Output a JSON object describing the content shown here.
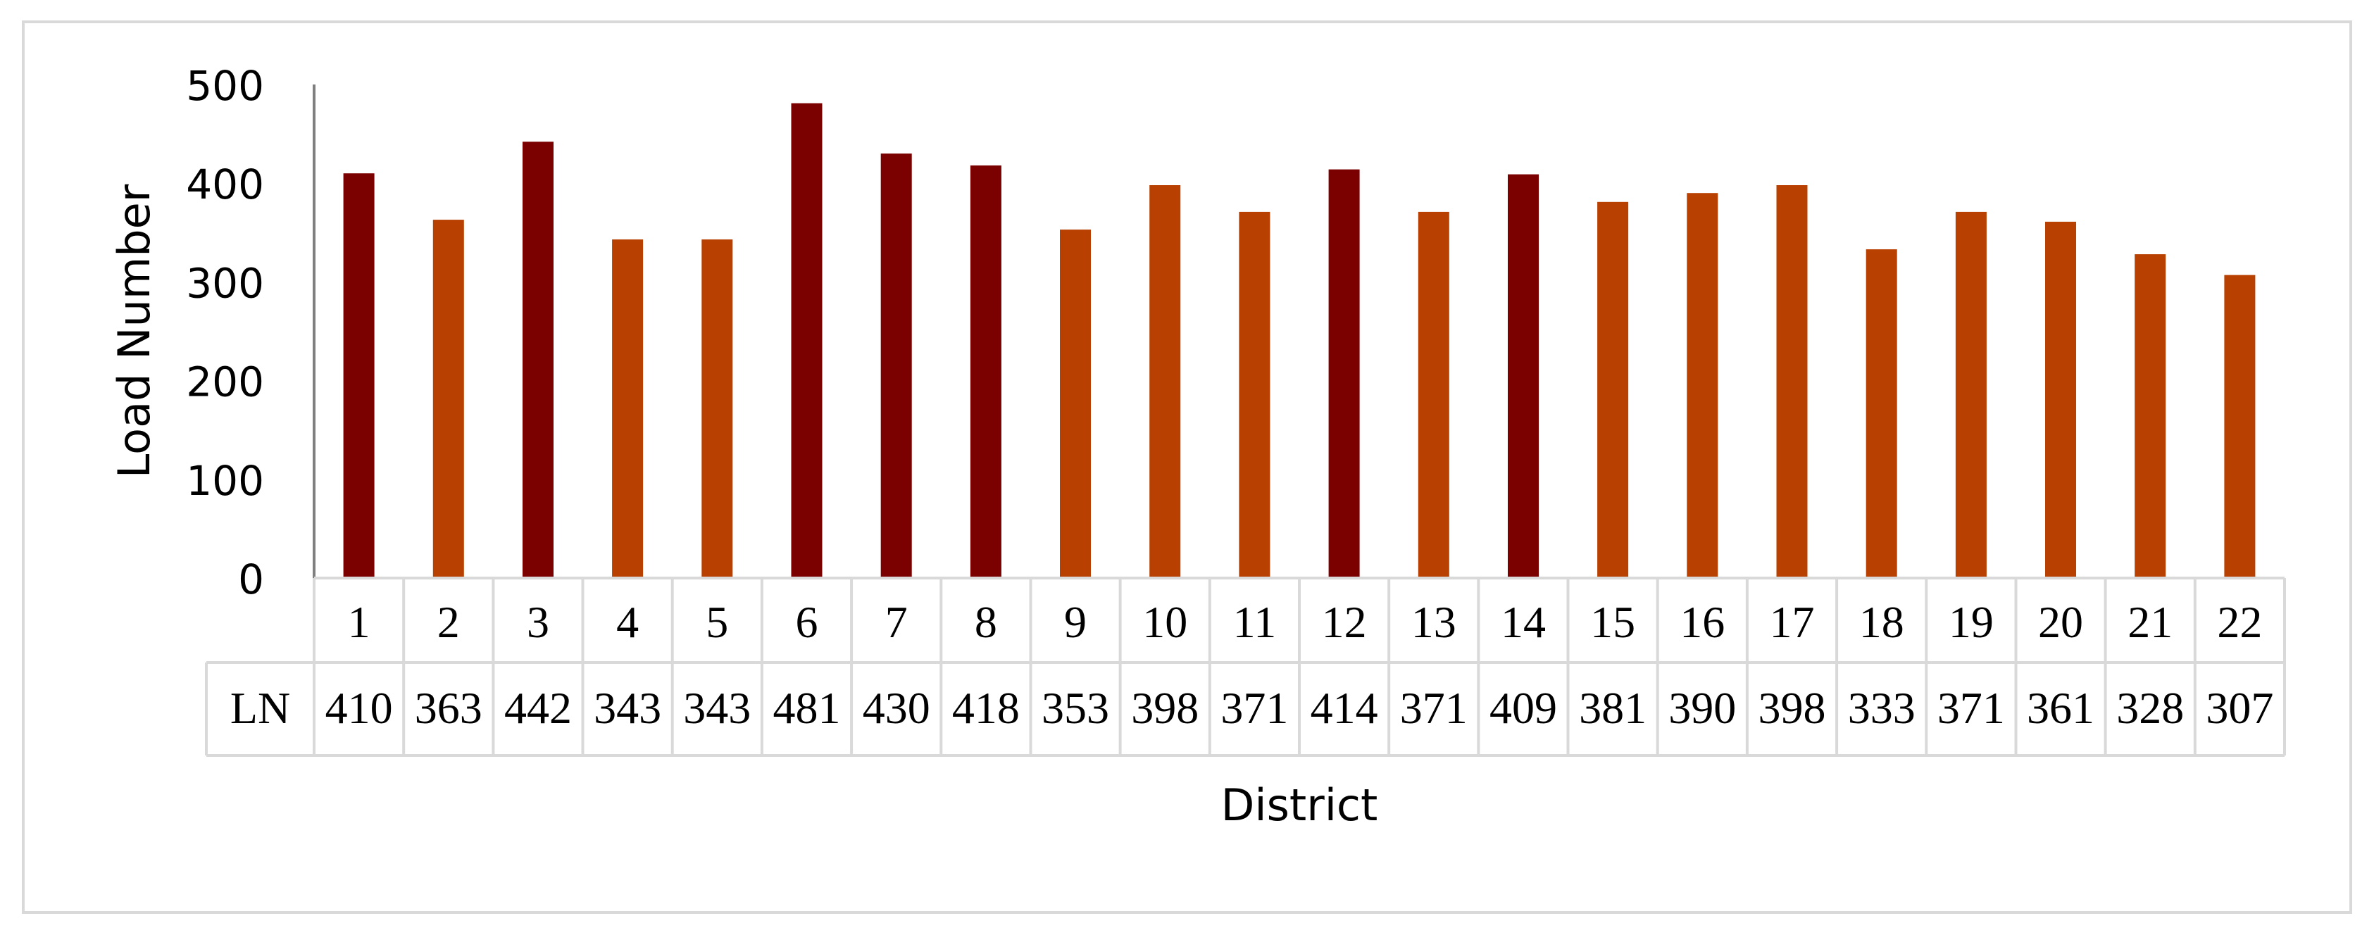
{
  "chart_data": {
    "type": "bar",
    "title": "",
    "xlabel": "District",
    "ylabel": "Load Number",
    "ylim": [
      0,
      500
    ],
    "yticks": [
      0,
      100,
      200,
      300,
      400,
      500
    ],
    "grid": false,
    "legend": "none",
    "categories": [
      "1",
      "2",
      "3",
      "4",
      "5",
      "6",
      "7",
      "8",
      "9",
      "10",
      "11",
      "12",
      "13",
      "14",
      "15",
      "16",
      "17",
      "18",
      "19",
      "20",
      "21",
      "22"
    ],
    "series": [
      {
        "name": "LN",
        "values": [
          410,
          363,
          442,
          343,
          343,
          481,
          430,
          418,
          353,
          398,
          371,
          414,
          371,
          409,
          381,
          390,
          398,
          333,
          371,
          361,
          328,
          307
        ]
      }
    ],
    "highlighted_categories": [
      "1",
      "3",
      "6",
      "7",
      "8",
      "12",
      "14"
    ],
    "colors": {
      "highlight": "#7b0000",
      "normal": "#b84000",
      "axis": "#7f7f7f",
      "table_border": "#d9d9d9",
      "frame": "#d9d9d9"
    },
    "table": {
      "row_header": "LN"
    }
  }
}
